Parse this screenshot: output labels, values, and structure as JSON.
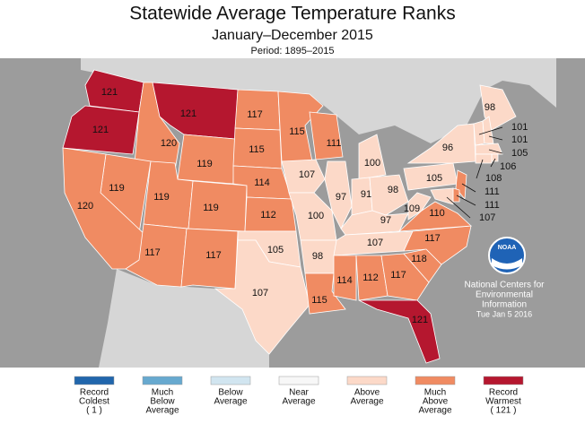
{
  "header": {
    "title": "Statewide Average Temperature Ranks",
    "subtitle": "January–December 2015",
    "period": "Period: 1895–2015"
  },
  "states": [
    {
      "rank": 121,
      "color": "#b5172f"
    },
    {
      "rank": 121,
      "color": "#b5172f"
    },
    {
      "rank": 120,
      "color": "#f08b62"
    },
    {
      "rank": 119,
      "color": "#f08b62"
    },
    {
      "rank": 120,
      "color": "#f08b62"
    },
    {
      "rank": 121,
      "color": "#b5172f"
    },
    {
      "rank": 119,
      "color": "#f08b62"
    },
    {
      "rank": 119,
      "color": "#f08b62"
    },
    {
      "rank": 119,
      "color": "#f08b62"
    },
    {
      "rank": 117,
      "color": "#f08b62"
    },
    {
      "rank": 117,
      "color": "#f08b62"
    },
    {
      "rank": 117,
      "color": "#f08b62"
    },
    {
      "rank": 115,
      "color": "#f08b62"
    },
    {
      "rank": 114,
      "color": "#f08b62"
    },
    {
      "rank": 112,
      "color": "#f08b62"
    },
    {
      "rank": 105,
      "color": "#fcd9c8"
    },
    {
      "rank": 107,
      "color": "#fcd9c8"
    },
    {
      "rank": 115,
      "color": "#f08b62"
    },
    {
      "rank": 107,
      "color": "#fcd9c8"
    },
    {
      "rank": 100,
      "color": "#fcd9c8"
    },
    {
      "rank": 98,
      "color": "#fcd9c8"
    },
    {
      "rank": 115,
      "color": "#f08b62"
    },
    {
      "rank": 111,
      "color": "#f08b62"
    },
    {
      "rank": 97,
      "color": "#fcd9c8"
    },
    {
      "rank": 100,
      "color": "#fcd9c8"
    },
    {
      "rank": 91,
      "color": "#fcd9c8"
    },
    {
      "rank": 98,
      "color": "#fcd9c8"
    },
    {
      "rank": 97,
      "color": "#fcd9c8"
    },
    {
      "rank": 107,
      "color": "#fcd9c8"
    },
    {
      "rank": 114,
      "color": "#f08b62"
    },
    {
      "rank": 112,
      "color": "#f08b62"
    },
    {
      "rank": 117,
      "color": "#f08b62"
    },
    {
      "rank": 121,
      "color": "#b5172f"
    },
    {
      "rank": 118,
      "color": "#f08b62"
    },
    {
      "rank": 117,
      "color": "#f08b62"
    },
    {
      "rank": 110,
      "color": "#f08b62"
    },
    {
      "rank": 109,
      "color": "#fcd9c8"
    },
    {
      "rank": 105,
      "color": "#fcd9c8"
    },
    {
      "rank": 96,
      "color": "#fcd9c8"
    },
    {
      "rank": 98,
      "color": "#fcd9c8"
    },
    {
      "rank": 101,
      "color": "#fcd9c8"
    },
    {
      "rank": 101,
      "color": "#fcd9c8"
    },
    {
      "rank": 105,
      "color": "#fcd9c8"
    },
    {
      "rank": 106,
      "color": "#fcd9c8"
    },
    {
      "rank": 108,
      "color": "#fcd9c8"
    },
    {
      "rank": 111,
      "color": "#f08b62"
    },
    {
      "rank": 111,
      "color": "#f08b62"
    },
    {
      "rank": 107,
      "color": "#fcd9c8"
    }
  ],
  "legend": [
    {
      "lines": [
        "Record",
        "Coldest",
        "( 1 )"
      ],
      "color": "#2166ac"
    },
    {
      "lines": [
        "Much",
        "Below",
        "Average"
      ],
      "color": "#67a9cf"
    },
    {
      "lines": [
        "Below",
        "Average"
      ],
      "color": "#d1e5f0"
    },
    {
      "lines": [
        "Near",
        "Average"
      ],
      "color": "#f7f7f7"
    },
    {
      "lines": [
        "Above",
        "Average"
      ],
      "color": "#fcd9c8"
    },
    {
      "lines": [
        "Much",
        "Above",
        "Average"
      ],
      "color": "#f08b62"
    },
    {
      "lines": [
        "Record",
        "Warmest",
        "( 121 )"
      ],
      "color": "#b5172f"
    }
  ],
  "logo": "NOAA",
  "credit": {
    "lines": [
      "National Centers for",
      "Environmental",
      "Information"
    ],
    "date": "Tue Jan  5 2016"
  }
}
